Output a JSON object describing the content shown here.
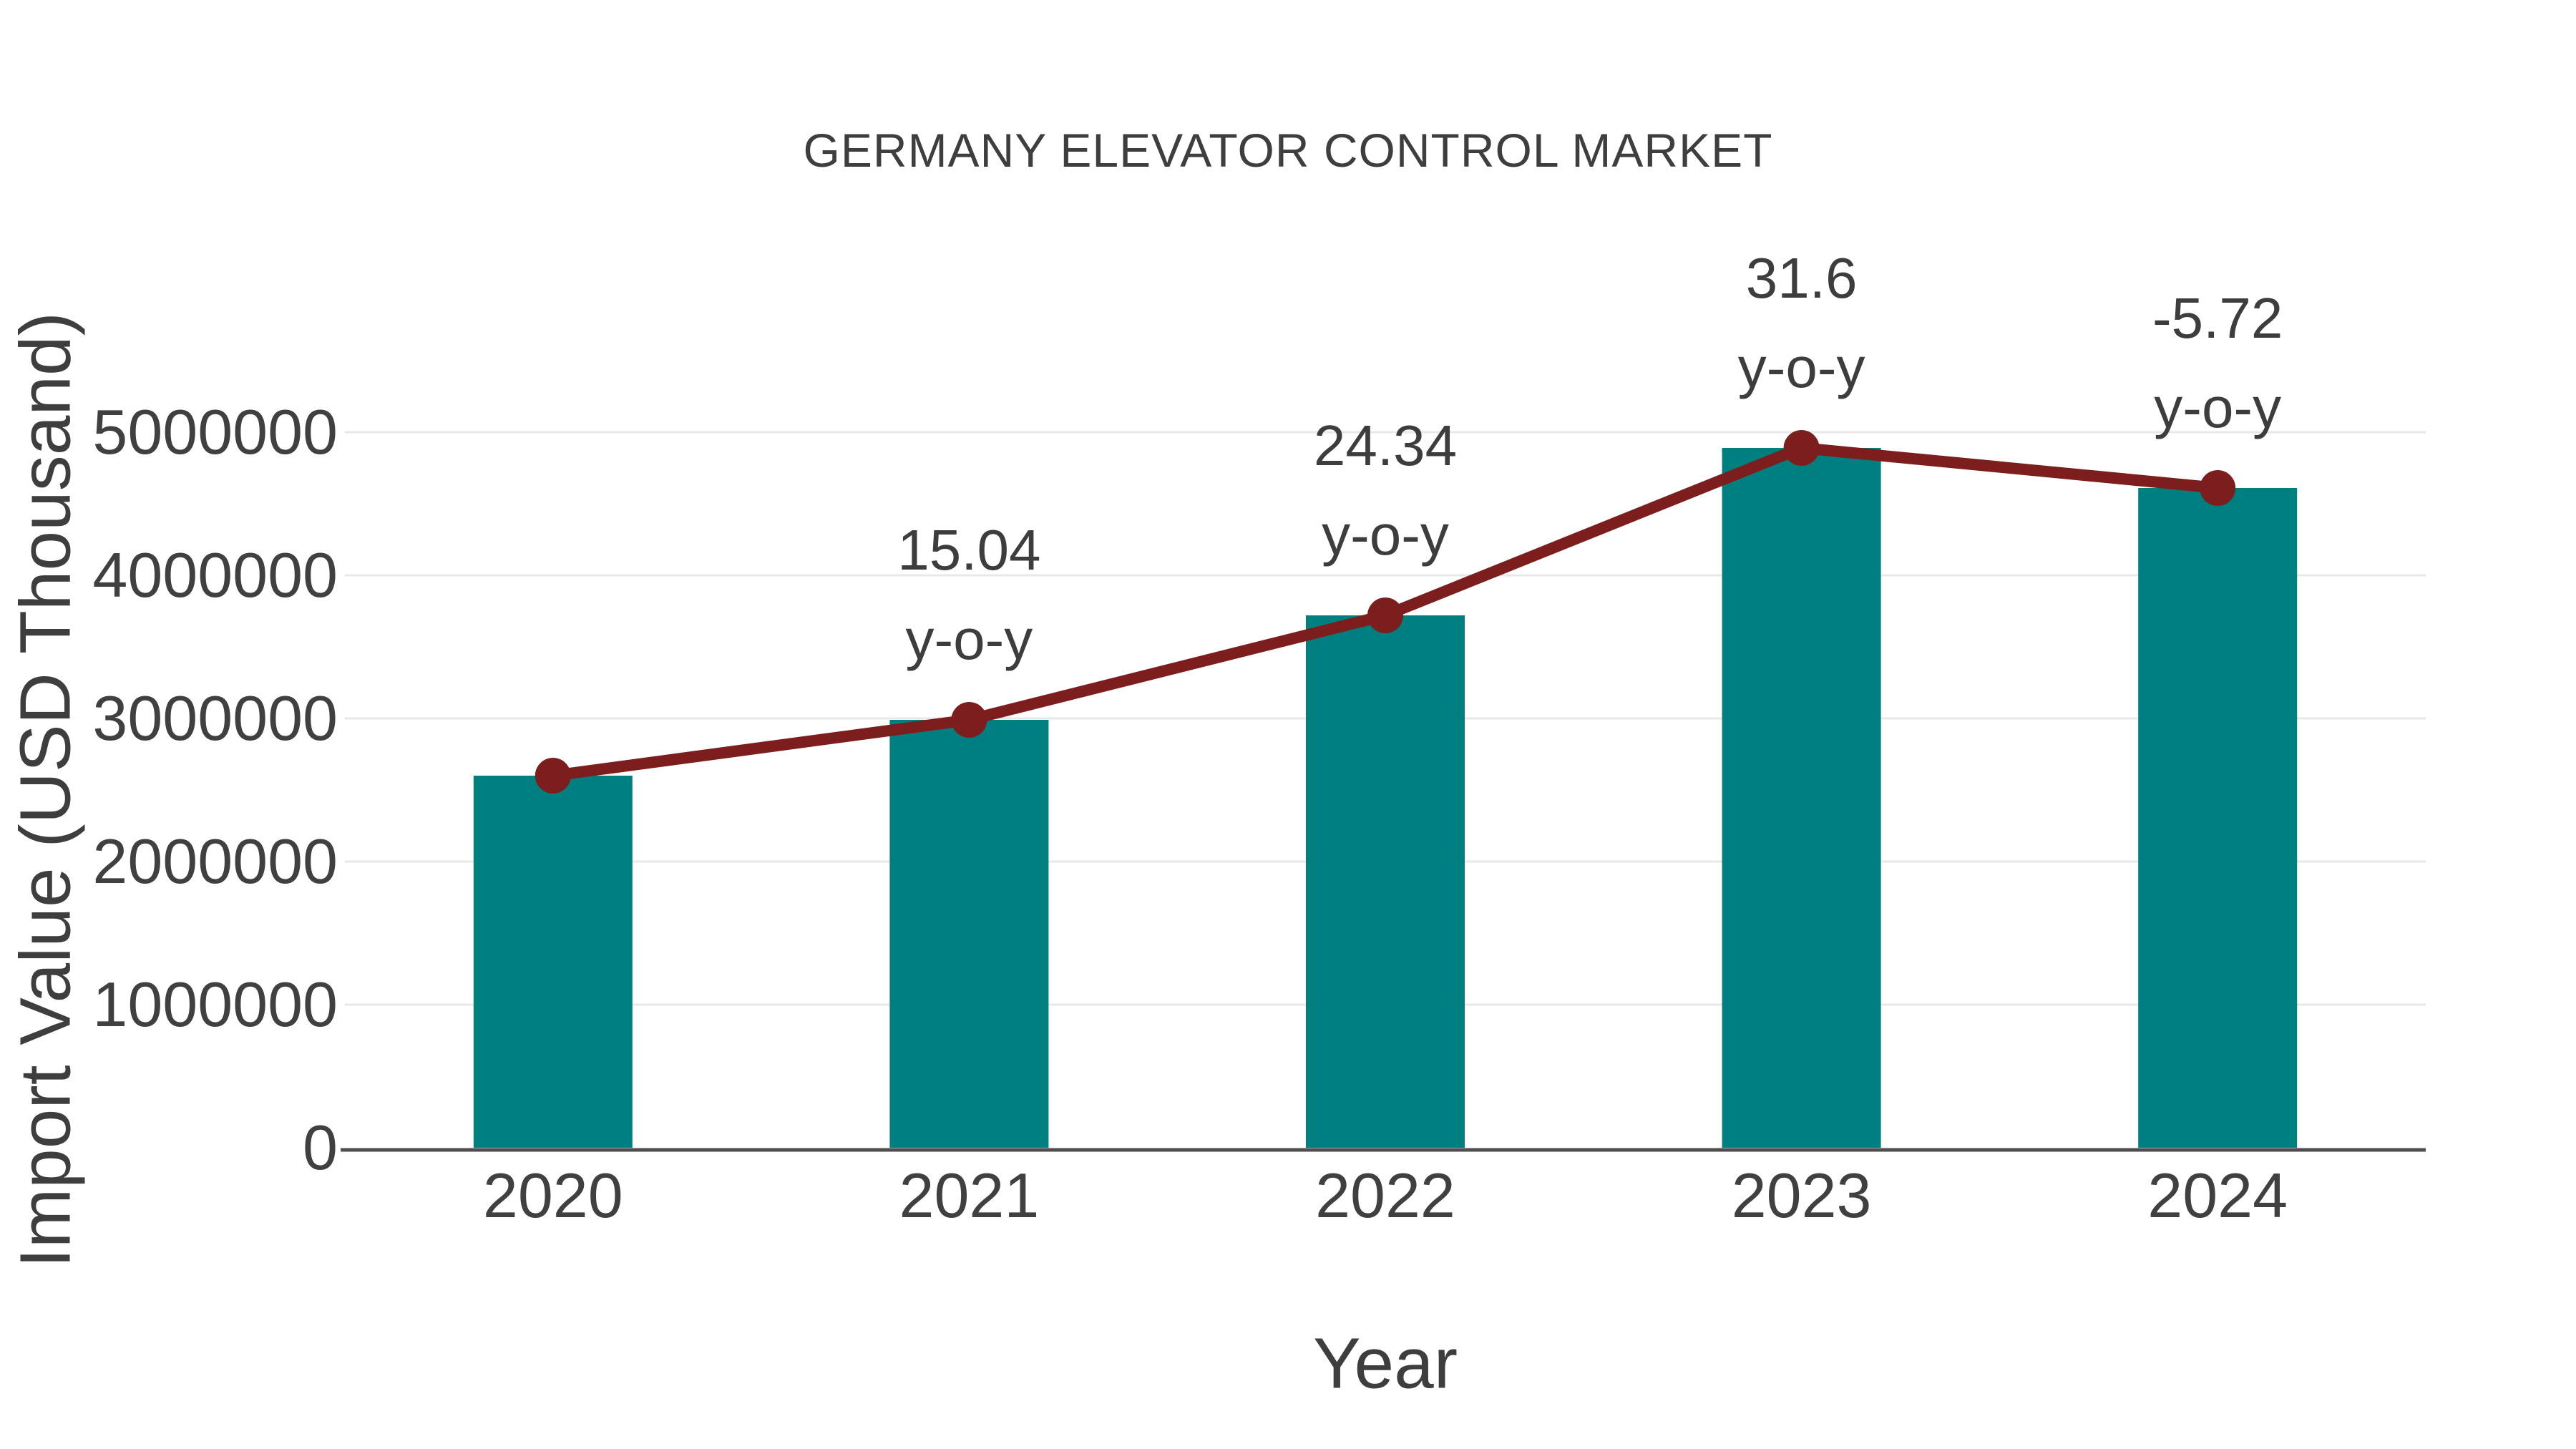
{
  "chart_data": {
    "type": "bar",
    "title": "GERMANY ELEVATOR CONTROL MARKET",
    "xlabel": "Year",
    "ylabel": "Import Value (USD Thousand)",
    "categories": [
      "2020",
      "2021",
      "2022",
      "2023",
      "2024"
    ],
    "series": [
      {
        "name": "Import Value",
        "type": "bar",
        "color": "#007f80",
        "values": [
          2600000,
          2990000,
          3720000,
          4890000,
          4610000
        ]
      },
      {
        "name": "y-o-y growth (%)",
        "type": "line",
        "color": "#7d1e1e",
        "values": [
          null,
          15.04,
          24.34,
          31.6,
          -5.72
        ]
      }
    ],
    "ylim": [
      0,
      5000000
    ],
    "ytick_step": 1000000,
    "yticks": [
      "0",
      "1000000",
      "2000000",
      "3000000",
      "4000000",
      "5000000"
    ],
    "annotations": [
      {
        "x": "2021",
        "lines": [
          "15.04",
          "y-o-y"
        ]
      },
      {
        "x": "2022",
        "lines": [
          "24.34",
          "y-o-y"
        ]
      },
      {
        "x": "2023",
        "lines": [
          "31.6",
          "y-o-y"
        ]
      },
      {
        "x": "2024",
        "lines": [
          "-5.72",
          "y-o-y"
        ]
      }
    ],
    "grid": true,
    "legend": false,
    "colors": {
      "bar": "#007f80",
      "line": "#7d1e1e",
      "grid": "#e8e8e8",
      "axis": "#4d4d4d",
      "text": "#3d3d3d",
      "background": "#ffffff"
    }
  }
}
